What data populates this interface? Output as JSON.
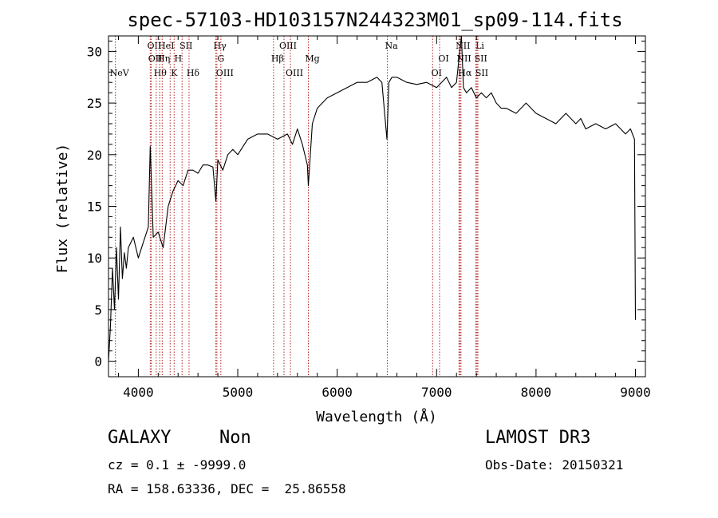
{
  "chart_data": {
    "type": "line",
    "title": "spec-57103-HD103157N244323M01_sp09-114.fits",
    "xlabel": "Wavelength (Å)",
    "ylabel": "Flux (relative)",
    "xlim": [
      3700,
      9100
    ],
    "ylim": [
      -1.5,
      31.5
    ],
    "xticks": [
      4000,
      5000,
      6000,
      7000,
      8000,
      9000
    ],
    "yticks": [
      0,
      5,
      10,
      15,
      20,
      25,
      30
    ],
    "grid": false,
    "series": [
      {
        "color": "#000000",
        "x": [
          3700,
          3720,
          3740,
          3760,
          3780,
          3800,
          3820,
          3840,
          3860,
          3880,
          3900,
          3950,
          4000,
          4050,
          4100,
          4120,
          4150,
          4200,
          4250,
          4300,
          4350,
          4400,
          4450,
          4500,
          4550,
          4600,
          4650,
          4700,
          4750,
          4780,
          4800,
          4850,
          4900,
          4950,
          5000,
          5100,
          5200,
          5300,
          5400,
          5500,
          5550,
          5600,
          5650,
          5700,
          5710,
          5750,
          5800,
          5900,
          6000,
          6100,
          6200,
          6300,
          6400,
          6450,
          6500,
          6520,
          6550,
          6600,
          6700,
          6800,
          6900,
          7000,
          7050,
          7100,
          7150,
          7200,
          7250,
          7270,
          7300,
          7350,
          7400,
          7450,
          7500,
          7550,
          7600,
          7650,
          7700,
          7800,
          7900,
          8000,
          8100,
          8200,
          8300,
          8400,
          8450,
          8500,
          8600,
          8700,
          8800,
          8900,
          8950,
          8990,
          9000
        ],
        "y": [
          0.0,
          3.5,
          9.0,
          5.0,
          11.0,
          6.0,
          13.0,
          8.0,
          10.5,
          9.0,
          11.0,
          12.0,
          10.0,
          11.5,
          13.0,
          20.8,
          12.0,
          12.5,
          11.0,
          15.0,
          16.5,
          17.5,
          17.0,
          18.5,
          18.5,
          18.2,
          19.0,
          19.0,
          18.8,
          15.5,
          19.5,
          18.5,
          20.0,
          20.5,
          20.0,
          21.5,
          22.0,
          22.0,
          21.5,
          22.0,
          21.0,
          22.5,
          21.0,
          19.0,
          17.0,
          23.0,
          24.5,
          25.5,
          26.0,
          26.5,
          27.0,
          27.0,
          27.5,
          27.0,
          21.5,
          27.0,
          27.5,
          27.5,
          27.0,
          26.8,
          27.0,
          26.5,
          27.0,
          27.5,
          26.5,
          27.0,
          31.5,
          26.5,
          26.0,
          26.5,
          25.5,
          26.0,
          25.5,
          26.0,
          25.0,
          24.5,
          24.5,
          24.0,
          25.0,
          24.0,
          23.5,
          23.0,
          24.0,
          23.0,
          23.5,
          22.5,
          23.0,
          22.5,
          23.0,
          22.0,
          22.5,
          21.5,
          4.0
        ]
      }
    ],
    "lines": [
      {
        "x": 3770,
        "label": "NeV",
        "row": 3
      },
      {
        "x": 4120,
        "label": "OII",
        "row": 1
      },
      {
        "x": 4130,
        "label": "OII",
        "row": 2
      },
      {
        "x": 4180,
        "label": "Hθ",
        "row": 3
      },
      {
        "x": 4215,
        "label": "Hη",
        "row": 2
      },
      {
        "x": 4240,
        "label": "HeI",
        "row": 1
      },
      {
        "x": 4320,
        "label": "K",
        "row": 3
      },
      {
        "x": 4360,
        "label": "H",
        "row": 2
      },
      {
        "x": 4440,
        "label": "SII",
        "row": 1
      },
      {
        "x": 4510,
        "label": "Hδ",
        "row": 3
      },
      {
        "x": 4780,
        "label": "Hγ",
        "row": 1
      },
      {
        "x": 4790,
        "label": "G",
        "row": 2
      },
      {
        "x": 4830,
        "label": "OIII",
        "row": 3
      },
      {
        "x": 5360,
        "label": "Hβ",
        "row": 2
      },
      {
        "x": 5465,
        "label": "OIII",
        "row": 1
      },
      {
        "x": 5530,
        "label": "OIII",
        "row": 3
      },
      {
        "x": 5710,
        "label": "Mg",
        "row": 2
      },
      {
        "x": 6505,
        "label": "Na",
        "row": 1
      },
      {
        "x": 6960,
        "label": "OI",
        "row": 3
      },
      {
        "x": 7030,
        "label": "OI",
        "row": 2
      },
      {
        "x": 7225,
        "label": "NII",
        "row": 1
      },
      {
        "x": 7235,
        "label": "NII",
        "row": 2
      },
      {
        "x": 7245,
        "label": "Hα",
        "row": 3
      },
      {
        "x": 7395,
        "label": "Li",
        "row": 1
      },
      {
        "x": 7405,
        "label": "SII",
        "row": 2
      },
      {
        "x": 7415,
        "label": "SII",
        "row": 3
      }
    ]
  },
  "info": {
    "class": "GALAXY",
    "subclass": "Non",
    "survey": "LAMOST DR3",
    "cz": "cz = 0.1 ± -9999.0",
    "obs_date": "Obs-Date: 20150321",
    "coords": "RA = 158.63336, DEC =  25.86558"
  }
}
